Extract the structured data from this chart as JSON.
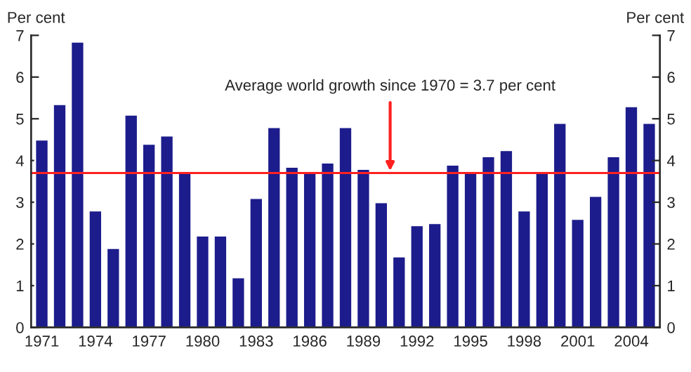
{
  "chart_data": {
    "type": "bar",
    "ylabel": "Per cent",
    "y2label": "Per cent",
    "categories": [
      "1971",
      null,
      null,
      "1974",
      null,
      null,
      "1977",
      null,
      null,
      "1980",
      null,
      null,
      "1983",
      null,
      null,
      "1986",
      null,
      null,
      "1989",
      null,
      null,
      "1992",
      null,
      null,
      "1995",
      null,
      null,
      "1998",
      null,
      null,
      "2001",
      null,
      null,
      "2004",
      null
    ],
    "series": [
      {
        "color": "#1c1c8c",
        "values": [
          4.5,
          5.35,
          6.85,
          2.8,
          1.9,
          5.1,
          4.4,
          4.6,
          3.7,
          2.2,
          2.2,
          1.2,
          3.1,
          4.8,
          3.85,
          3.7,
          3.95,
          4.8,
          3.8,
          3.0,
          1.7,
          2.45,
          2.5,
          3.9,
          3.7,
          4.1,
          4.25,
          2.8,
          3.7,
          4.9,
          2.6,
          3.15,
          4.1,
          5.3,
          4.9
        ]
      }
    ],
    "ylim": [
      0,
      7
    ],
    "yticks": [
      0,
      1,
      2,
      3,
      4,
      5,
      6,
      7
    ],
    "y2lim": [
      0,
      7
    ],
    "y2ticks": [
      0,
      1,
      2,
      3,
      4,
      5,
      6,
      7
    ],
    "ref_lines": [
      {
        "axis": "y",
        "value": 3.7,
        "color": "#ff2020"
      }
    ],
    "annotations": [
      {
        "text": "Average world growth since 1970 = 3.7 per cent",
        "y": 3.7
      }
    ],
    "grid": false,
    "legend": false
  }
}
